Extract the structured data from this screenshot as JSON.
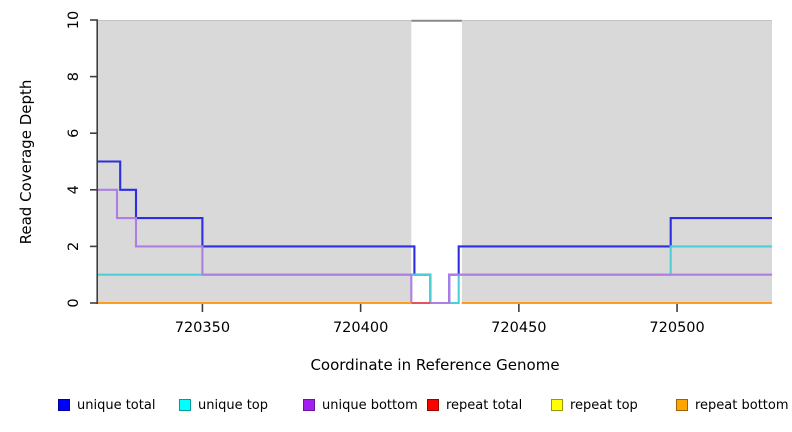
{
  "chart_data": {
    "type": "line",
    "subtype": "step",
    "title": "",
    "xlabel": "Coordinate in Reference Genome",
    "ylabel": "Read Coverage Depth",
    "xlim": [
      720317,
      720530
    ],
    "ylim": [
      0,
      10
    ],
    "xticks": [
      720350,
      720400,
      720450,
      720500
    ],
    "yticks": [
      0,
      2,
      4,
      6,
      8,
      10
    ],
    "grid": false,
    "panel_color": "#d9d9d9",
    "panel_edge_color": "#c4c4c4",
    "background_panels": [
      {
        "start": 720317,
        "end": 720416
      },
      {
        "start": 720432,
        "end": 720530
      }
    ],
    "gap_region": {
      "start": 720416,
      "end": 720432,
      "top_line_value": 10,
      "top_line_color": "#8a8a8a"
    },
    "axis_color": "#3f3f3f",
    "legend_position": "bottom",
    "series": [
      {
        "name": "unique total",
        "line_color": "#2e2ee0",
        "legend_fill": "#0000ff",
        "legend_border": "#000099",
        "runs": [
          {
            "points": [
              [
                720317,
                5
              ],
              [
                720324,
                4
              ],
              [
                720329,
                3
              ],
              [
                720350,
                2
              ],
              [
                720417,
                1
              ],
              [
                720422,
                0
              ],
              [
                720428,
                1
              ],
              [
                720431,
                2
              ],
              [
                720498,
                3
              ]
            ],
            "end": 720530
          }
        ]
      },
      {
        "name": "unique top",
        "line_color": "#4ecfd6",
        "legend_fill": "#00ffff",
        "legend_border": "#009999",
        "runs": [
          {
            "points": [
              [
                720317,
                1
              ],
              [
                720422,
                0
              ],
              [
                720431,
                1
              ],
              [
                720498,
                2
              ]
            ],
            "end": 720530
          }
        ]
      },
      {
        "name": "unique bottom",
        "line_color": "#ad7fe4",
        "legend_fill": "#a020f0",
        "legend_border": "#6a14a0",
        "runs": [
          {
            "points": [
              [
                720317,
                4
              ],
              [
                720323,
                3
              ],
              [
                720329,
                2
              ],
              [
                720350,
                1
              ],
              [
                720416,
                0
              ],
              [
                720428,
                1
              ]
            ],
            "end": 720530
          }
        ]
      },
      {
        "name": "repeat total",
        "line_color": "#e05560",
        "legend_fill": "#ff0000",
        "legend_border": "#990000",
        "runs": [
          {
            "points": [
              [
                720317,
                0
              ]
            ],
            "end": 720422
          },
          {
            "points": [
              [
                720432,
                0
              ]
            ],
            "end": 720530
          }
        ]
      },
      {
        "name": "repeat top",
        "line_color": "#f5e942",
        "legend_fill": "#ffff00",
        "legend_border": "#999900",
        "runs": [
          {
            "points": [
              [
                720317,
                0
              ]
            ],
            "end": 720416
          },
          {
            "points": [
              [
                720432,
                0
              ]
            ],
            "end": 720530
          }
        ]
      },
      {
        "name": "repeat bottom",
        "line_color": "#ff9c20",
        "legend_fill": "#ffa500",
        "legend_border": "#9c6400",
        "runs": [
          {
            "points": [
              [
                720317,
                0
              ]
            ],
            "end": 720416
          },
          {
            "points": [
              [
                720432,
                0
              ]
            ],
            "end": 720530
          }
        ]
      }
    ]
  }
}
